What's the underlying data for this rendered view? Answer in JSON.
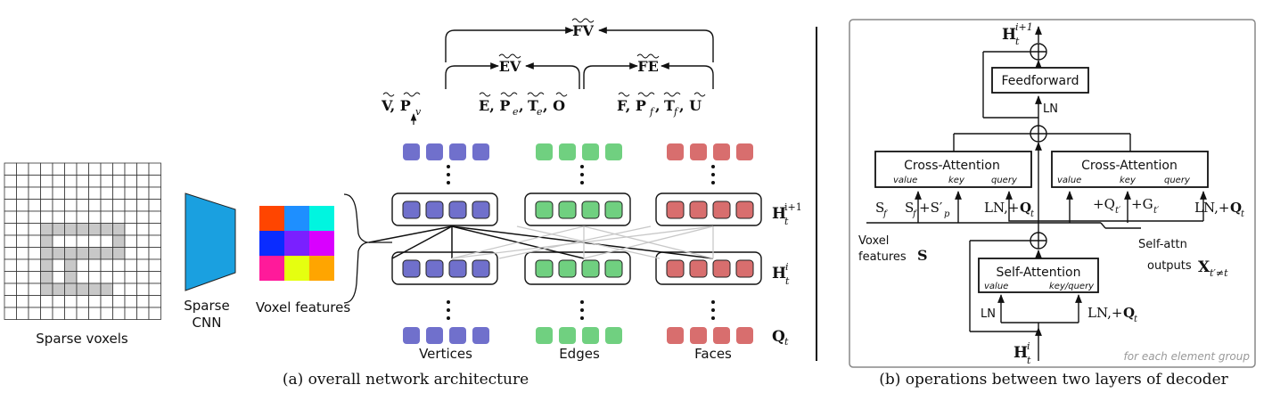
{
  "colors": {
    "vertex": "#7070cc",
    "edge": "#70d080",
    "face": "#d86e6e",
    "voxel_fill": "#c8c8c8",
    "cnn": "#1aa0e0",
    "feature_grid": [
      "#ff4500",
      "#1e8fff",
      "#00f5e0",
      "#0a2cff",
      "#7a20ff",
      "#d900ff",
      "#ff1a9a",
      "#e5ff10",
      "#ffa500"
    ]
  },
  "voxel_grid": {
    "filled": [
      [
        3,
        5
      ],
      [
        4,
        5
      ],
      [
        5,
        5
      ],
      [
        6,
        5
      ],
      [
        7,
        5
      ],
      [
        8,
        5
      ],
      [
        9,
        5
      ],
      [
        3,
        6
      ],
      [
        9,
        6
      ],
      [
        3,
        7
      ],
      [
        4,
        7
      ],
      [
        5,
        7
      ],
      [
        6,
        7
      ],
      [
        7,
        7
      ],
      [
        8,
        7
      ],
      [
        9,
        7
      ],
      [
        3,
        8
      ],
      [
        5,
        8
      ],
      [
        3,
        9
      ],
      [
        5,
        9
      ],
      [
        3,
        10
      ],
      [
        4,
        10
      ],
      [
        5,
        10
      ],
      [
        6,
        10
      ],
      [
        7,
        10
      ],
      [
        8,
        10
      ]
    ]
  },
  "left": {
    "sparse_voxels_label": "Sparse voxels",
    "sparse_cnn_label_line1": "Sparse",
    "sparse_cnn_label_line2": "CNN",
    "voxel_features_label": "Voxel features",
    "outputs": {
      "fv": "FV",
      "ev": "EV",
      "fe": "FE",
      "v_group": "V, P",
      "v_sub": "v",
      "e_group": "E, P",
      "e_sub": "e",
      "e_group_rest": ", O",
      "f_group": "F, P",
      "f_sub": "f",
      "f_group_rest": ", U",
      "t_letter": "T"
    },
    "layer_labels": {
      "h_next": "H",
      "h_next_sup": "i+1",
      "h_cur": "H",
      "h_cur_sup": "i",
      "sub_t": "t",
      "q": "Q",
      "q_sub": "t"
    },
    "vertices_label": "Vertices",
    "edges_label": "Edges",
    "faces_label": "Faces",
    "caption": "(a) overall network architecture"
  },
  "right": {
    "feedforward_label": "Feedforward",
    "ln_label": "LN",
    "cross_attention_left": "Cross-Attention",
    "cross_attention_right": "Cross-Attention",
    "value_label": "value",
    "key_label": "key",
    "query_label": "query",
    "self_attention_label": "Self-Attention",
    "key_query_label": "key/query",
    "voxel_features_line1": "Voxel",
    "voxel_features_line2": "features",
    "voxel_features_symbol": "S",
    "self_attn_outputs_line1": "Self-attn",
    "self_attn_outputs_line2": "outputs",
    "x_symbol": "X",
    "x_sub": "t′≠t",
    "s_f": "S",
    "f_sub": "f",
    "s_f_plus": "+S′",
    "p_sub": "p",
    "ln_plus": "LN,+",
    "q_symbol": "Q",
    "t_sub": "t",
    "plus_q": "+Q",
    "t_prime_sub": "t′",
    "plus_g": "+G",
    "h_top": "H",
    "h_top_sup": "i+1",
    "h_bottom": "H",
    "h_bottom_sup": "i",
    "footnote": "for each element group",
    "caption": "(b) operations between two layers of decoder"
  }
}
